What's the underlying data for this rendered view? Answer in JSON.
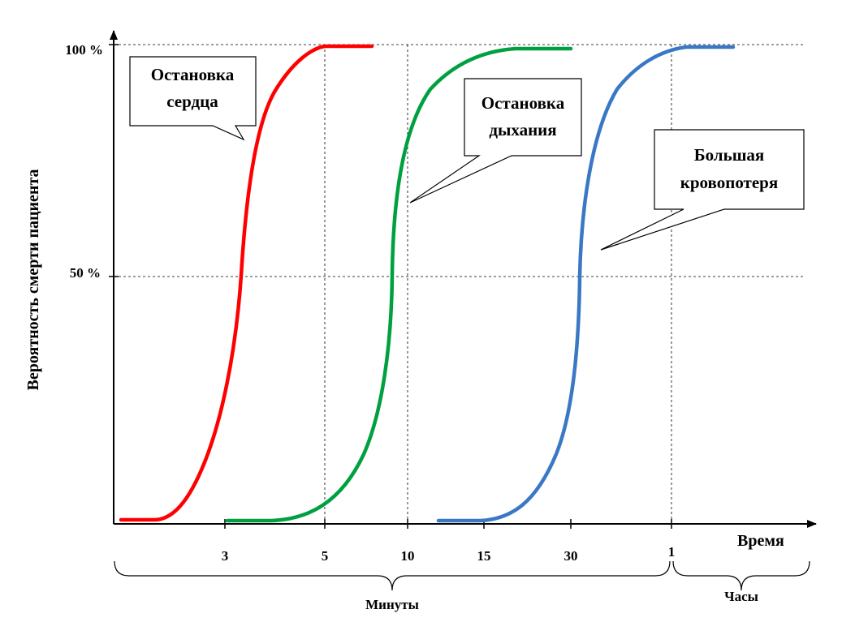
{
  "chart_data": {
    "type": "line",
    "title": "",
    "xlabel": "Время",
    "ylabel": "Вероятность смерти пациента",
    "y_ticks": [
      "100 %",
      "50 %"
    ],
    "x_ticks": [
      "3",
      "5",
      "10",
      "15",
      "30",
      "1"
    ],
    "x_groups": [
      {
        "label": "Минуты",
        "from_tick": "3",
        "to_tick": "1"
      },
      {
        "label": "Часы",
        "from_tick": "1",
        "to_tick": ""
      }
    ],
    "grid": "dashed at 100 %, 50 % and at ticks 5, 10, 1",
    "legend": "none",
    "series": [
      {
        "name": "Остановка сердца",
        "color": "#ff0000",
        "callout": [
          "Остановка",
          "сердца"
        ],
        "start_y": 0,
        "mid_y": 50,
        "end_y": 100,
        "mid_at_minutes": 3.4
      },
      {
        "name": "Остановка дыхания",
        "color": "#00a040",
        "callout": [
          "Остановка",
          "дыхания"
        ],
        "start_y": 0,
        "mid_y": 50,
        "end_y": 100,
        "mid_at_minutes": 9
      },
      {
        "name": "Большая кровопотеря",
        "color": "#3a78c6",
        "callout": [
          "Большая",
          "кровопотеря"
        ],
        "start_y": 0,
        "mid_y": 50,
        "end_y": 100,
        "mid_at_minutes": 31
      }
    ]
  }
}
